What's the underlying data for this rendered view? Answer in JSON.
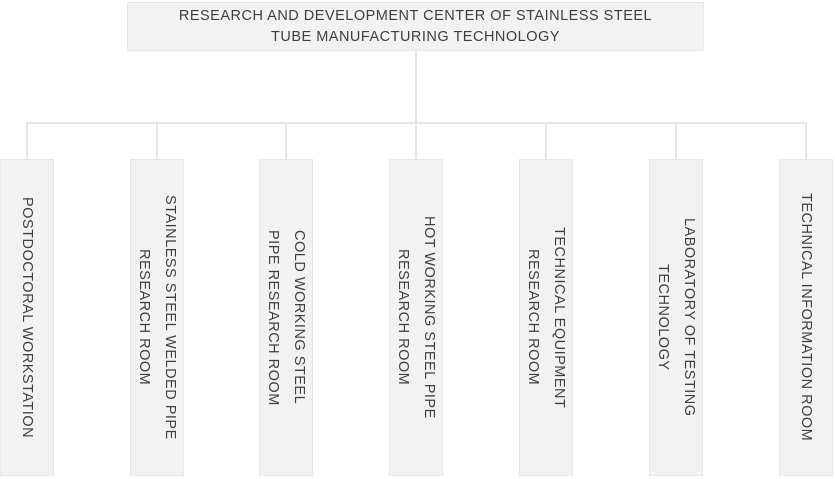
{
  "org": {
    "root": {
      "label": "RESEARCH AND DEVELOPMENT CENTER OF STAINLESS STEEL TUBE MANUFACTURING TECHNOLOGY",
      "lines": [
        "RESEARCH AND DEVELOPMENT CENTER OF STAINLESS STEEL",
        "TUBE MANUFACTURING TECHNOLOGY"
      ]
    },
    "children": [
      {
        "label": "POSTDOCTORAL WORKSTATION",
        "lines": [
          "POSTDOCTORAL WORKSTATION"
        ]
      },
      {
        "label": "STAINLESS STEEL WELDED PIPE RESEARCH ROOM",
        "lines": [
          "STAINLESS STEEL WELDED PIPE",
          "RESEARCH ROOM"
        ]
      },
      {
        "label": "COLD WORKING STEEL PIPE RESEARCH ROOM",
        "lines": [
          "COLD WORKING STEEL",
          "PIPE RESEARCH ROOM"
        ]
      },
      {
        "label": "HOT WORKING STEEL PIPE RESEARCH ROOM",
        "lines": [
          "HOT WORKING STEEL PIPE",
          "RESEARCH ROOM"
        ]
      },
      {
        "label": "TECHNICAL EQUIPMENT RESEARCH ROOM",
        "lines": [
          "TECHNICAL EQUIPMENT",
          "RESEARCH ROOM"
        ]
      },
      {
        "label": "LABORATORY OF TESTING TECHNOLOGY",
        "lines": [
          "LABORATORY OF TESTING",
          "TECHNOLOGY"
        ]
      },
      {
        "label": "TECHNICAL INFORMATION ROOM",
        "lines": [
          "TECHNICAL INFORMATION ROOM"
        ]
      }
    ],
    "colors": {
      "background": "#ffffff",
      "box_fill": "#f2f2f2",
      "box_border": "#e8e8e8",
      "connector": "#e6e6e6",
      "text": "#3e3e3e"
    }
  }
}
